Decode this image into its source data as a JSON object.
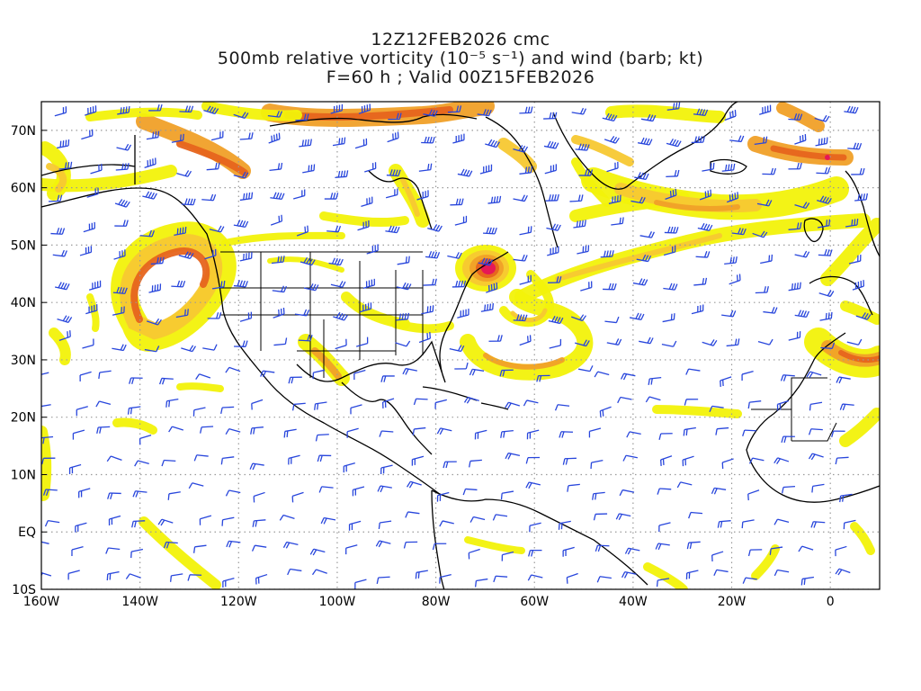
{
  "title": {
    "line1": "12Z12FEB2026 cmc",
    "line2": "500mb relative vorticity (10⁻⁵ s⁻¹) and wind (barb; kt)",
    "line3": "F=60 h ; Valid 00Z15FEB2026"
  },
  "lat_labels": [
    "70N",
    "60N",
    "50N",
    "40N",
    "30N",
    "20N",
    "10N",
    "EQ",
    "10S"
  ],
  "lon_labels": [
    "160W",
    "140W",
    "120W",
    "100W",
    "80W",
    "60W",
    "40W",
    "20W",
    "0"
  ],
  "colors": {
    "vort_low": "#f2f20a",
    "vort_mid": "#f7c832",
    "vort_orange": "#f0a028",
    "vort_high": "#e6641e",
    "vort_peak": "#e6145a",
    "wind_barb": "#2846dc",
    "coast": "#000000",
    "grid": "#9a9a9a"
  }
}
